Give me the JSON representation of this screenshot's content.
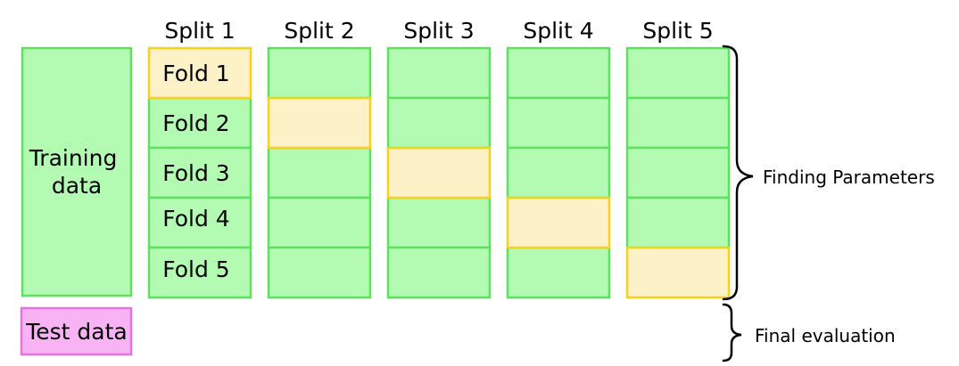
{
  "splits": [
    "Split 1",
    "Split 2",
    "Split 3",
    "Split 4",
    "Split 5"
  ],
  "folds": [
    "Fold 1",
    "Fold 2",
    "Fold 3",
    "Fold 4",
    "Fold 5"
  ],
  "training_label": [
    "Training",
    "data"
  ],
  "test_label": "Test data",
  "brace_labels": {
    "finding_parameters": "Finding Parameters",
    "final_evaluation": "Final evaluation"
  },
  "colors": {
    "training_fill": "#b3fbb3",
    "training_stroke": "#60e060",
    "validation_fill": "#fdf1c8",
    "validation_stroke": "#f5d21c",
    "test_fill": "#f7b3f4",
    "test_stroke": "#e872e0"
  }
}
